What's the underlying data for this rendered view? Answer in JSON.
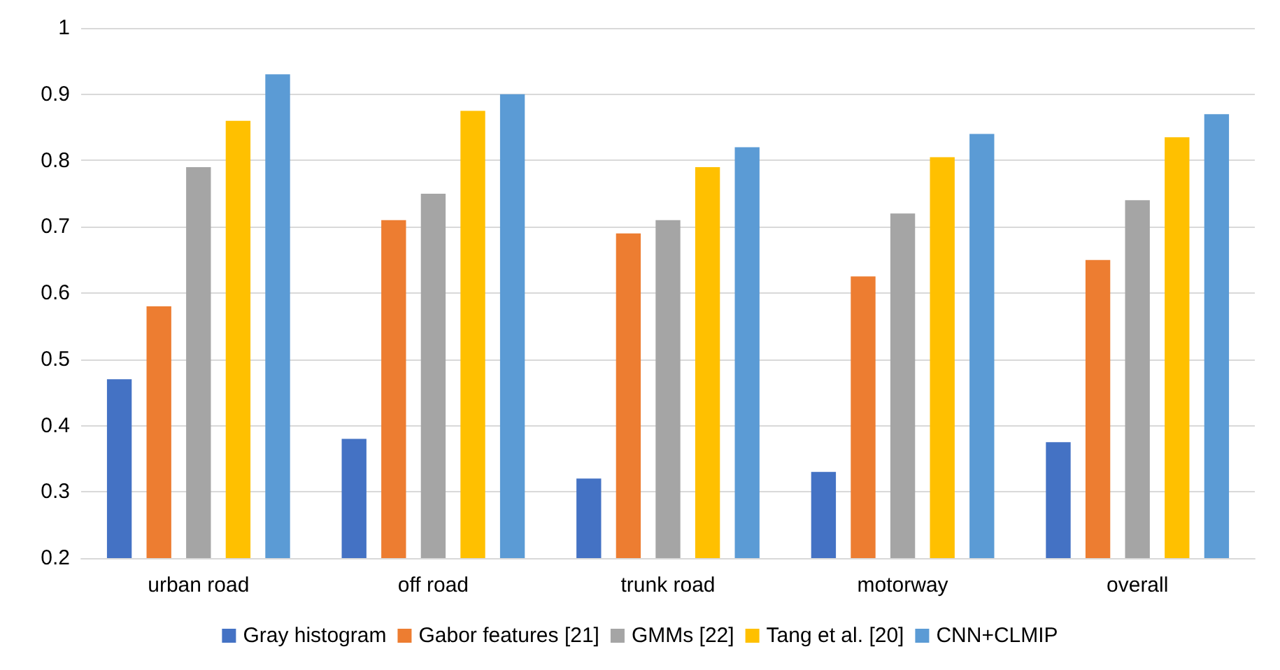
{
  "chart_data": {
    "type": "bar",
    "categories": [
      "urban road",
      "off road",
      "trunk road",
      "motorway",
      "overall"
    ],
    "series": [
      {
        "name": "Gray histogram",
        "color": "#4472c4",
        "values": [
          0.47,
          0.38,
          0.32,
          0.33,
          0.375
        ]
      },
      {
        "name": "Gabor features [21]",
        "color": "#ed7d31",
        "values": [
          0.58,
          0.71,
          0.69,
          0.625,
          0.65
        ]
      },
      {
        "name": "GMMs [22]",
        "color": "#a5a5a5",
        "values": [
          0.79,
          0.75,
          0.71,
          0.72,
          0.74
        ]
      },
      {
        "name": "Tang et al. [20]",
        "color": "#ffc000",
        "values": [
          0.86,
          0.875,
          0.79,
          0.805,
          0.835
        ]
      },
      {
        "name": "CNN+CLMIP",
        "color": "#5b9bd5",
        "values": [
          0.93,
          0.9,
          0.82,
          0.84,
          0.87
        ]
      }
    ],
    "ylim": [
      0.2,
      1
    ],
    "yticks": [
      0.2,
      0.3,
      0.4,
      0.5,
      0.6,
      0.7,
      0.8,
      0.9,
      1
    ],
    "grid": "y",
    "legend": "bottom"
  }
}
